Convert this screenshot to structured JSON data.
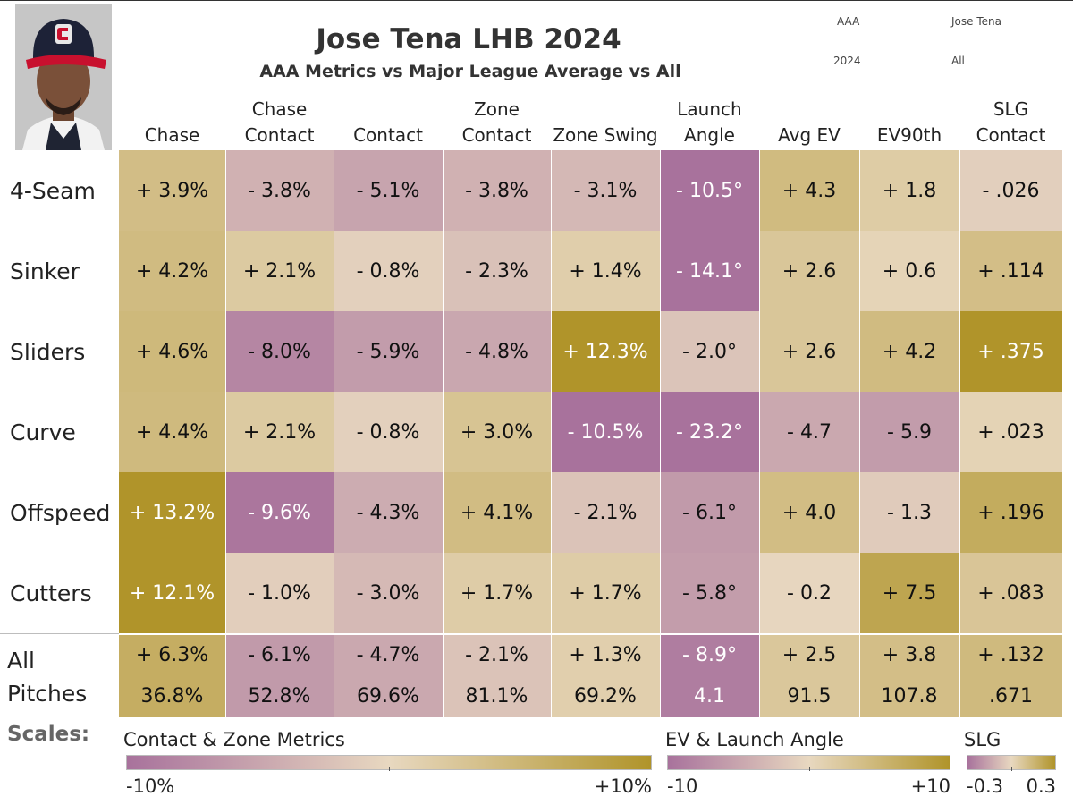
{
  "header": {
    "title": "Jose Tena LHB 2024",
    "subtitle": "AAA Metrics vs Major League Average vs All"
  },
  "filters": {
    "level": "AAA",
    "player": "Jose Tena",
    "year": "2024",
    "pitch_filter": "All"
  },
  "colors": {
    "magenta_dark": "#a8729c",
    "neutral": "#e8d8c0",
    "gold_dark": "#b0942a"
  },
  "chart_data": {
    "type": "heatmap",
    "columns": [
      "Chase",
      "Chase Contact",
      "Contact",
      "Zone Contact",
      "Zone Swing",
      "Launch Angle",
      "Avg EV",
      "EV90th",
      "SLG Contact"
    ],
    "column_lines": [
      [
        "Chase"
      ],
      [
        "Chase",
        "Contact"
      ],
      [
        "Contact"
      ],
      [
        "Zone",
        "Contact"
      ],
      [
        "Zone Swing"
      ],
      [
        "Launch",
        "Angle"
      ],
      [
        "Avg EV"
      ],
      [
        "EV90th"
      ],
      [
        "SLG",
        "Contact"
      ]
    ],
    "column_scale": [
      "pct",
      "pct",
      "pct",
      "pct",
      "pct",
      "ev",
      "ev",
      "ev",
      "slg"
    ],
    "rows": [
      "4-Seam",
      "Sinker",
      "Sliders",
      "Curve",
      "Offspeed",
      "Cutters"
    ],
    "values": [
      [
        3.9,
        -3.8,
        -5.1,
        -3.8,
        -3.1,
        -10.5,
        4.3,
        1.8,
        -0.026
      ],
      [
        4.2,
        2.1,
        -0.8,
        -2.3,
        1.4,
        -14.1,
        2.6,
        0.6,
        0.114
      ],
      [
        4.6,
        -8.0,
        -5.9,
        -4.8,
        12.3,
        -2.0,
        2.6,
        4.2,
        0.375
      ],
      [
        4.4,
        2.1,
        -0.8,
        3.0,
        -10.5,
        -23.2,
        -4.7,
        -5.9,
        0.023
      ],
      [
        13.2,
        -9.6,
        -4.3,
        4.1,
        -2.1,
        -6.1,
        4.0,
        -1.3,
        0.196
      ],
      [
        12.1,
        -1.0,
        -3.0,
        1.7,
        1.7,
        -5.8,
        -0.2,
        7.5,
        0.083
      ]
    ],
    "labels": [
      [
        "+ 3.9%",
        "- 3.8%",
        "- 5.1%",
        "- 3.8%",
        "- 3.1%",
        "- 10.5°",
        "+ 4.3",
        "+ 1.8",
        "- .026"
      ],
      [
        "+ 4.2%",
        "+ 2.1%",
        "- 0.8%",
        "- 2.3%",
        "+ 1.4%",
        "- 14.1°",
        "+ 2.6",
        "+ 0.6",
        "+ .114"
      ],
      [
        "+ 4.6%",
        "- 8.0%",
        "- 5.9%",
        "- 4.8%",
        "+ 12.3%",
        "- 2.0°",
        "+ 2.6",
        "+ 4.2",
        "+ .375"
      ],
      [
        "+ 4.4%",
        "+ 2.1%",
        "- 0.8%",
        "+ 3.0%",
        "- 10.5%",
        "- 23.2°",
        "- 4.7",
        "- 5.9",
        "+ .023"
      ],
      [
        "+ 13.2%",
        "- 9.6%",
        "- 4.3%",
        "+ 4.1%",
        "- 2.1%",
        "- 6.1°",
        "+ 4.0",
        "- 1.3",
        "+ .196"
      ],
      [
        "+ 12.1%",
        "- 1.0%",
        "- 3.0%",
        "+ 1.7%",
        "+ 1.7%",
        "- 5.8°",
        "- 0.2",
        "+ 7.5",
        "+ .083"
      ]
    ],
    "all_row": {
      "label_lines": [
        "All",
        "Pitches"
      ],
      "diff_values": [
        6.3,
        -6.1,
        -4.7,
        -2.1,
        1.3,
        -8.9,
        2.5,
        3.8,
        0.132
      ],
      "diff_labels": [
        "+ 6.3%",
        "- 6.1%",
        "- 4.7%",
        "- 2.1%",
        "+ 1.3%",
        "- 8.9°",
        "+ 2.5",
        "+ 3.8",
        "+ .132"
      ],
      "actual_labels": [
        "36.8%",
        "52.8%",
        "69.6%",
        "81.1%",
        "69.2%",
        "4.1",
        "91.5",
        "107.8",
        ".671"
      ]
    },
    "scales": {
      "label": "Scales:",
      "items": [
        {
          "key": "pct",
          "title": "Contact & Zone Metrics",
          "min": -10,
          "max": 10,
          "min_label": "-10%",
          "max_label": "+10%"
        },
        {
          "key": "ev",
          "title": "EV & Launch Angle",
          "min": -10,
          "max": 10,
          "min_label": "-10",
          "max_label": "+10"
        },
        {
          "key": "slg",
          "title": "SLG",
          "min": -0.3,
          "max": 0.3,
          "min_label": "-0.3",
          "max_label": "0.3"
        }
      ]
    }
  }
}
